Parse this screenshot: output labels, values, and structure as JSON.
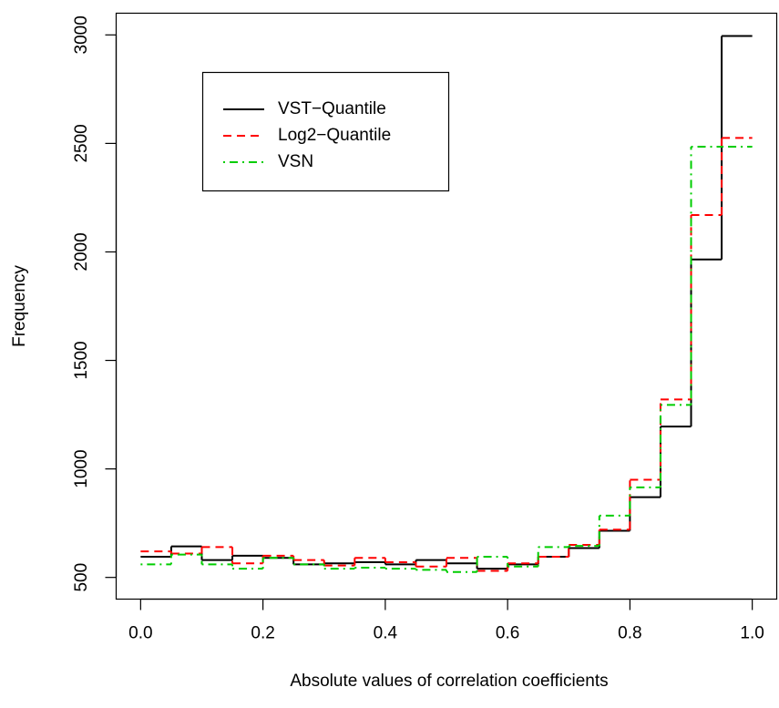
{
  "chart_data": {
    "type": "step-histogram",
    "x_label": "Absolute values of correlation coefficients",
    "y_label": "Frequency",
    "bins": [
      0,
      0.05,
      0.1,
      0.15,
      0.2,
      0.25,
      0.3,
      0.35,
      0.4,
      0.45,
      0.5,
      0.55,
      0.6,
      0.65,
      0.7,
      0.75,
      0.8,
      0.85,
      0.9,
      0.95,
      1.0
    ],
    "series": [
      {
        "name": "VST−Quantile",
        "color": "#000000",
        "linestyle": "solid",
        "values": [
          595,
          643,
          580,
          600,
          590,
          560,
          565,
          570,
          560,
          580,
          565,
          540,
          560,
          595,
          635,
          715,
          870,
          1195,
          1965,
          2995
        ]
      },
      {
        "name": "Log2−Quantile",
        "color": "#ff0000",
        "linestyle": "dashed",
        "values": [
          620,
          610,
          640,
          565,
          600,
          580,
          555,
          590,
          570,
          550,
          590,
          530,
          565,
          595,
          650,
          720,
          950,
          1320,
          2170,
          2525
        ]
      },
      {
        "name": "VSN",
        "color": "#00cd00",
        "linestyle": "dashdot",
        "values": [
          560,
          605,
          560,
          540,
          590,
          560,
          540,
          545,
          540,
          535,
          525,
          595,
          550,
          640,
          645,
          785,
          915,
          1295,
          2485,
          2485
        ]
      }
    ],
    "xlim": [
      -0.04,
      1.04
    ],
    "ylim": [
      400,
      3100
    ],
    "xticks": [
      {
        "value": 0,
        "label": "0.0"
      },
      {
        "value": 0.2,
        "label": "0.2"
      },
      {
        "value": 0.4,
        "label": "0.4"
      },
      {
        "value": 0.6,
        "label": "0.6"
      },
      {
        "value": 0.8,
        "label": "0.8"
      },
      {
        "value": 1.0,
        "label": "1.0"
      }
    ],
    "yticks": [
      500,
      1000,
      1500,
      2000,
      2500,
      3000
    ],
    "legend_position": "top-left"
  }
}
